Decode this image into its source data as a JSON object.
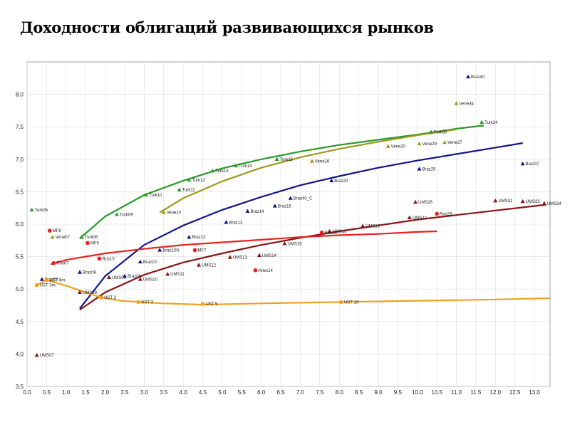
{
  "title": "Доходности облигаций развивающихся рынков",
  "chart_data": {
    "type": "scatter",
    "title": "Доходности облигаций развивающихся рынков",
    "xlabel": "",
    "ylabel": "",
    "xlim": [
      0.0,
      13.4
    ],
    "ylim": [
      3.5,
      8.5
    ],
    "grid": true,
    "x_ticks": [
      "0.0",
      "0.5",
      "1.0",
      "1.5",
      "2.0",
      "2.5",
      "3.0",
      "3.5",
      "4.0",
      "4.5",
      "5.0",
      "5.5",
      "6.0",
      "6.5",
      "7.0",
      "7.5",
      "8.0",
      "8.5",
      "9.0",
      "9.5",
      "10.0",
      "10.5",
      "11.0",
      "11.5",
      "12.0",
      "12.5",
      "13.0"
    ],
    "y_ticks": [
      "3.5",
      "4.0",
      "4.5",
      "5.0",
      "5.5",
      "6.0",
      "6.5",
      "7.0",
      "7.5",
      "8.0"
    ],
    "colors": {
      "turk": "#2a9a2a",
      "vene": "#9a9a1a",
      "braz": "#14148a",
      "ums": "#8a1414",
      "rus": "#e82020",
      "ust": "#f0a020"
    },
    "series": [
      {
        "key": "turk",
        "marker": "triangle",
        "points": [
          {
            "label": "Turk06",
            "x": 0.12,
            "y": 6.22
          },
          {
            "label": "Turk08",
            "x": 1.4,
            "y": 5.8
          },
          {
            "label": "Turk09",
            "x": 2.3,
            "y": 6.15
          },
          {
            "label": "Turk10",
            "x": 3.05,
            "y": 6.45
          },
          {
            "label": "Turk11",
            "x": 3.9,
            "y": 6.53
          },
          {
            "label": "Turk12",
            "x": 4.15,
            "y": 6.68
          },
          {
            "label": "Turk13",
            "x": 4.75,
            "y": 6.82
          },
          {
            "label": "Turk14",
            "x": 5.35,
            "y": 6.9
          },
          {
            "label": "Turk15",
            "x": 6.4,
            "y": 7.0
          },
          {
            "label": "Turk30",
            "x": 10.35,
            "y": 7.42
          },
          {
            "label": "Turk34",
            "x": 11.65,
            "y": 7.57
          }
        ],
        "curve": [
          [
            1.35,
            5.78
          ],
          [
            2.0,
            6.12
          ],
          [
            3.0,
            6.45
          ],
          [
            4.0,
            6.67
          ],
          [
            5.0,
            6.86
          ],
          [
            6.0,
            7.0
          ],
          [
            7.0,
            7.12
          ],
          [
            8.0,
            7.22
          ],
          [
            9.0,
            7.3
          ],
          [
            10.0,
            7.38
          ],
          [
            11.0,
            7.47
          ],
          [
            11.7,
            7.52
          ]
        ]
      },
      {
        "key": "vene",
        "marker": "triangle",
        "points": [
          {
            "label": "Vene07",
            "x": 0.65,
            "y": 5.8
          },
          {
            "label": "Vene10",
            "x": 3.5,
            "y": 6.18
          },
          {
            "label": "Vene16",
            "x": 7.3,
            "y": 6.97
          },
          {
            "label": "Vene20",
            "x": 9.25,
            "y": 7.2
          },
          {
            "label": "Vene29",
            "x": 10.05,
            "y": 7.24
          },
          {
            "label": "Vene27",
            "x": 10.7,
            "y": 7.26
          },
          {
            "label": "Vene34",
            "x": 11.0,
            "y": 7.86
          }
        ],
        "curve": [
          [
            3.4,
            6.18
          ],
          [
            4.0,
            6.4
          ],
          [
            5.0,
            6.66
          ],
          [
            6.0,
            6.87
          ],
          [
            7.0,
            7.03
          ],
          [
            8.0,
            7.16
          ],
          [
            9.0,
            7.27
          ],
          [
            10.0,
            7.37
          ],
          [
            11.0,
            7.46
          ]
        ]
      },
      {
        "key": "braz",
        "marker": "triangle",
        "points": [
          {
            "label": "Braz07",
            "x": 0.38,
            "y": 5.15
          },
          {
            "label": "Braz08",
            "x": 1.35,
            "y": 5.26
          },
          {
            "label": "Braz09",
            "x": 2.5,
            "y": 5.2
          },
          {
            "label": "Braz10",
            "x": 2.9,
            "y": 5.42
          },
          {
            "label": "Braz10N",
            "x": 3.4,
            "y": 5.6
          },
          {
            "label": "Braz12",
            "x": 4.15,
            "y": 5.8
          },
          {
            "label": "Braz13",
            "x": 5.1,
            "y": 6.03
          },
          {
            "label": "Braz14",
            "x": 5.65,
            "y": 6.2
          },
          {
            "label": "Braz15",
            "x": 6.35,
            "y": 6.28
          },
          {
            "label": "Braz40_C",
            "x": 6.75,
            "y": 6.4
          },
          {
            "label": "Braz20",
            "x": 7.8,
            "y": 6.67
          },
          {
            "label": "Braz25",
            "x": 10.05,
            "y": 6.85
          },
          {
            "label": "Braz37",
            "x": 12.7,
            "y": 6.93
          },
          {
            "label": "Braz40",
            "x": 11.3,
            "y": 8.27
          }
        ],
        "curve": [
          [
            1.35,
            4.7
          ],
          [
            2.0,
            5.2
          ],
          [
            3.0,
            5.68
          ],
          [
            4.0,
            5.98
          ],
          [
            5.0,
            6.22
          ],
          [
            6.0,
            6.42
          ],
          [
            7.0,
            6.6
          ],
          [
            8.0,
            6.74
          ],
          [
            9.0,
            6.87
          ],
          [
            10.0,
            6.98
          ],
          [
            11.0,
            7.08
          ],
          [
            12.0,
            7.18
          ],
          [
            12.7,
            7.25
          ]
        ]
      },
      {
        "key": "ums",
        "marker": "triangle",
        "points": [
          {
            "label": "UMS07",
            "x": 0.25,
            "y": 3.98
          },
          {
            "label": "UMS08",
            "x": 1.35,
            "y": 4.95
          },
          {
            "label": "UMS09",
            "x": 2.1,
            "y": 5.18
          },
          {
            "label": "UMS10",
            "x": 2.9,
            "y": 5.15
          },
          {
            "label": "UMS11",
            "x": 3.6,
            "y": 5.23
          },
          {
            "label": "UMS12",
            "x": 4.4,
            "y": 5.37
          },
          {
            "label": "UMS13",
            "x": 5.2,
            "y": 5.49
          },
          {
            "label": "UMS14",
            "x": 5.95,
            "y": 5.52
          },
          {
            "label": "UMS15",
            "x": 6.6,
            "y": 5.7
          },
          {
            "label": "UMS16",
            "x": 7.75,
            "y": 5.89
          },
          {
            "label": "UMS19",
            "x": 8.6,
            "y": 5.97
          },
          {
            "label": "UMS22",
            "x": 9.8,
            "y": 6.1
          },
          {
            "label": "UMS26",
            "x": 9.95,
            "y": 6.34
          },
          {
            "label": "UMS31",
            "x": 12.0,
            "y": 6.36
          },
          {
            "label": "UMS33",
            "x": 12.7,
            "y": 6.35
          },
          {
            "label": "UMS34",
            "x": 13.25,
            "y": 6.32
          }
        ],
        "curve": [
          [
            1.35,
            4.68
          ],
          [
            2.0,
            4.95
          ],
          [
            3.0,
            5.22
          ],
          [
            4.0,
            5.41
          ],
          [
            5.0,
            5.55
          ],
          [
            6.0,
            5.68
          ],
          [
            7.0,
            5.79
          ],
          [
            8.0,
            5.89
          ],
          [
            9.0,
            5.98
          ],
          [
            10.0,
            6.07
          ],
          [
            11.0,
            6.14
          ],
          [
            12.0,
            6.21
          ],
          [
            13.0,
            6.28
          ],
          [
            13.3,
            6.3
          ]
        ]
      },
      {
        "key": "rus",
        "marker": "circle",
        "points": [
          {
            "label": "MF8",
            "x": 0.58,
            "y": 5.9
          },
          {
            "label": "Rus07",
            "x": 0.68,
            "y": 5.4
          },
          {
            "label": "MF5",
            "x": 1.55,
            "y": 5.71
          },
          {
            "label": "Rus10",
            "x": 1.85,
            "y": 5.47
          },
          {
            "label": "MF7",
            "x": 4.3,
            "y": 5.6
          },
          {
            "label": "Ariex14",
            "x": 5.85,
            "y": 5.29
          },
          {
            "label": "Rus18",
            "x": 7.55,
            "y": 5.87
          },
          {
            "label": "Rus28",
            "x": 10.5,
            "y": 6.16
          }
        ],
        "curve": [
          [
            0.6,
            5.38
          ],
          [
            1.0,
            5.45
          ],
          [
            2.0,
            5.55
          ],
          [
            3.0,
            5.62
          ],
          [
            4.0,
            5.68
          ],
          [
            5.0,
            5.72
          ],
          [
            6.0,
            5.76
          ],
          [
            7.0,
            5.8
          ],
          [
            8.0,
            5.83
          ],
          [
            9.0,
            5.85
          ],
          [
            10.0,
            5.88
          ],
          [
            10.5,
            5.89
          ]
        ]
      },
      {
        "key": "ust",
        "marker": "circle",
        "points": [
          {
            "label": "UST 3m",
            "x": 0.25,
            "y": 5.06
          },
          {
            "label": "UST 6m",
            "x": 0.5,
            "y": 5.14
          },
          {
            "label": "UST 2",
            "x": 1.9,
            "y": 4.87
          },
          {
            "label": "UST 3",
            "x": 2.85,
            "y": 4.8
          },
          {
            "label": "UST 5",
            "x": 4.5,
            "y": 4.77
          },
          {
            "label": "UST 10",
            "x": 8.05,
            "y": 4.8
          }
        ],
        "curve": [
          [
            0.25,
            5.06
          ],
          [
            0.5,
            5.14
          ],
          [
            1.0,
            5.05
          ],
          [
            1.5,
            4.95
          ],
          [
            1.9,
            4.87
          ],
          [
            2.4,
            4.82
          ],
          [
            2.85,
            4.8
          ],
          [
            3.5,
            4.78
          ],
          [
            4.5,
            4.76
          ],
          [
            6.0,
            4.78
          ],
          [
            8.05,
            4.8
          ],
          [
            10.0,
            4.82
          ],
          [
            12.0,
            4.84
          ],
          [
            13.4,
            4.86
          ]
        ]
      }
    ]
  }
}
